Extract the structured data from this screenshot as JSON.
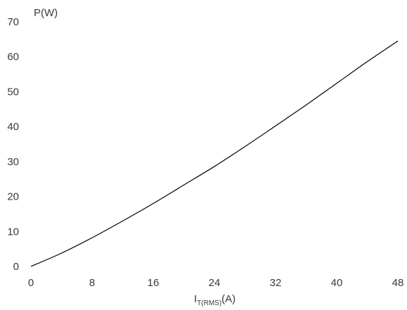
{
  "chart_data": {
    "type": "line",
    "ylabel": "P(W)",
    "xlabel_main": "I",
    "xlabel_sub": "T(RMS)",
    "xlabel_unit": "(A)",
    "xlim": [
      0,
      48
    ],
    "ylim": [
      0,
      70
    ],
    "x_ticks": [
      0,
      8,
      16,
      24,
      32,
      40,
      48
    ],
    "y_ticks": [
      0,
      10,
      20,
      30,
      40,
      50,
      60,
      70
    ],
    "grid": false,
    "legend": "none",
    "line_color": "#000000",
    "series": [
      {
        "x": [
          0,
          4,
          8,
          12,
          16,
          20,
          24,
          28,
          32,
          36,
          40,
          44,
          48
        ],
        "y": [
          0,
          3.8,
          8.2,
          13.0,
          18.0,
          23.3,
          28.6,
          34.3,
          40.2,
          46.2,
          52.4,
          58.6,
          64.5
        ]
      }
    ]
  }
}
